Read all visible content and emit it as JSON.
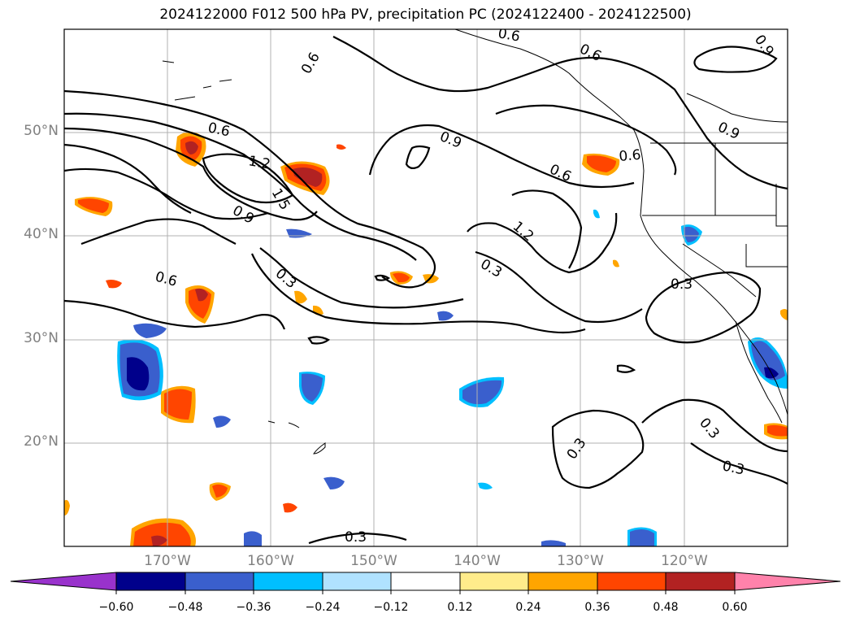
{
  "title": "2024122000 F012 500 hPa PV, precipitation PC (2024122400 - 2024122500)",
  "map": {
    "lat_labels": [
      "50°N",
      "40°N",
      "30°N",
      "20°N"
    ],
    "lon_labels": [
      "170°W",
      "160°W",
      "150°W",
      "140°W",
      "130°W",
      "120°W"
    ],
    "gridline_color": "#b0b0b0",
    "contour_color": "#000000",
    "contour_labels": [
      "0.6",
      "1.2",
      "1.5",
      "0.9",
      "0.3",
      "0.9",
      "0.6",
      "1.2",
      "0.3",
      "0.6",
      "0.9",
      "0.3",
      "0.6",
      "0.6",
      "0.3",
      "0.3",
      "0.3",
      "0.3",
      "0.6",
      "0.9",
      "0.6"
    ]
  },
  "colorbar": {
    "ticks": [
      "−0.60",
      "−0.48",
      "−0.36",
      "−0.24",
      "−0.12",
      "0.12",
      "0.24",
      "0.36",
      "0.48",
      "0.60"
    ],
    "colors": [
      "#9932cc",
      "#00008b",
      "#3a5fcd",
      "#00bfff",
      "#b0e2ff",
      "#ffffff",
      "#ffec8b",
      "#ffa500",
      "#ff4500",
      "#b22222",
      "#ff82ab"
    ]
  }
}
